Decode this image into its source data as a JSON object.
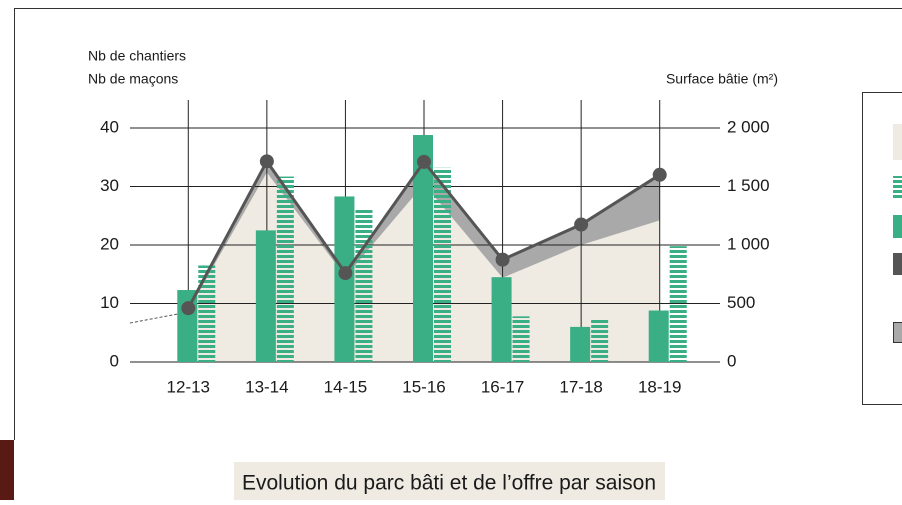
{
  "chart_data": {
    "type": "bar",
    "title": "Evolution du parc bâti et de l’offre par saison",
    "y_axis_labels": [
      "Nb de chantiers",
      "Nb de maçons"
    ],
    "y2_axis_label": "Surface bâtie (m²)",
    "categories": [
      "12-13",
      "13-14",
      "14-15",
      "15-16",
      "16-17",
      "17-18",
      "18-19"
    ],
    "ylim": [
      0,
      40
    ],
    "yticks": [
      0,
      10,
      20,
      30,
      40
    ],
    "y2lim": [
      0,
      2000
    ],
    "y2ticks": [
      0,
      500,
      {
        "value": 1000,
        "label": "1 000"
      },
      {
        "value": 1500,
        "label": "1 500"
      },
      {
        "value": 2000,
        "label": "2 000"
      }
    ],
    "grid": true,
    "series": [
      {
        "type": "bar",
        "color": "#3aae84",
        "values": [
          12.3,
          22.5,
          28.3,
          38.8,
          14.5,
          6,
          8.8
        ]
      },
      {
        "type": "bar",
        "pattern": "striped",
        "color": "#3aae84",
        "values": [
          16.5,
          31.7,
          26,
          33.2,
          7.8,
          7.5,
          19.8
        ]
      },
      {
        "type": "area",
        "axis": "y2",
        "color": "#efebe3",
        "values": [
          440,
          1620,
          730,
          1520,
          720,
          1000,
          1210
        ]
      },
      {
        "type": "line",
        "axis": "y2",
        "color": "#555555",
        "band_color": "#a9a9a9",
        "values": [
          460,
          1715,
          760,
          1710,
          875,
          1175,
          1600
        ]
      }
    ]
  }
}
